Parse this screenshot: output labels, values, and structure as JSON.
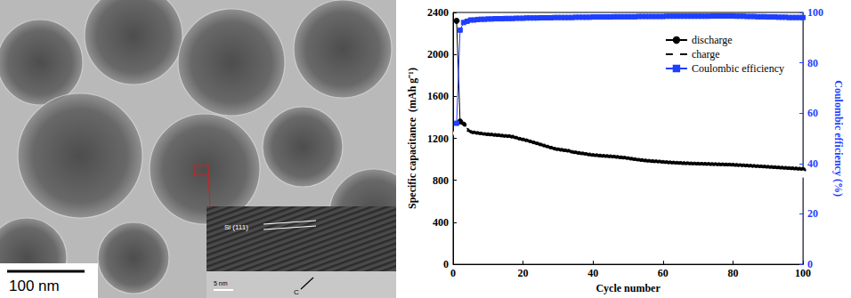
{
  "micrograph": {
    "scale_bar": "100 nm",
    "inset": {
      "lattice_label": "Si (111)",
      "scale_bar": "5 nm",
      "label": "C"
    }
  },
  "chart_data": {
    "type": "line",
    "x_label": "Cycle number",
    "y_label": "Specific capacitance  (mAh g⁻¹)",
    "y2_label": "Coulombic efficiency (%)",
    "xlim": [
      0,
      100
    ],
    "xticks": [
      0,
      20,
      40,
      60,
      80,
      100
    ],
    "ylim": [
      0,
      2400
    ],
    "yticks": [
      0,
      400,
      800,
      1200,
      1600,
      2000,
      2400
    ],
    "y2lim": [
      0,
      100
    ],
    "y2ticks": [
      0,
      20,
      40,
      60,
      80,
      100
    ],
    "grid": false,
    "legend": "upper right",
    "x": [
      1,
      2,
      3,
      4,
      5,
      6,
      7,
      8,
      9,
      10,
      11,
      12,
      13,
      14,
      15,
      16,
      17,
      18,
      19,
      20,
      21,
      22,
      23,
      24,
      25,
      26,
      27,
      28,
      29,
      30,
      31,
      32,
      33,
      34,
      35,
      36,
      37,
      38,
      39,
      40,
      41,
      42,
      43,
      44,
      45,
      46,
      47,
      48,
      49,
      50,
      51,
      52,
      53,
      54,
      55,
      56,
      57,
      58,
      59,
      60,
      61,
      62,
      63,
      64,
      65,
      66,
      67,
      68,
      69,
      70,
      71,
      72,
      73,
      74,
      75,
      76,
      77,
      78,
      79,
      80,
      81,
      82,
      83,
      84,
      85,
      86,
      87,
      88,
      89,
      90,
      91,
      92,
      93,
      94,
      95,
      96,
      97,
      98,
      99,
      100
    ],
    "series": [
      {
        "name": "discharge",
        "color": "#000000",
        "marker": "circle",
        "values": [
          2320,
          1360,
          1330,
          1270,
          1250,
          1245,
          1240,
          1235,
          1230,
          1228,
          1225,
          1222,
          1220,
          1215,
          1212,
          1210,
          1205,
          1195,
          1185,
          1178,
          1170,
          1160,
          1150,
          1140,
          1130,
          1120,
          1110,
          1100,
          1090,
          1085,
          1080,
          1075,
          1070,
          1060,
          1055,
          1050,
          1045,
          1040,
          1035,
          1030,
          1028,
          1025,
          1022,
          1020,
          1018,
          1015,
          1012,
          1008,
          1005,
          1000,
          995,
          990,
          985,
          982,
          978,
          975,
          972,
          970,
          968,
          965,
          962,
          960,
          958,
          956,
          955,
          953,
          952,
          950,
          949,
          948,
          947,
          946,
          945,
          944,
          943,
          942,
          941,
          940,
          939,
          938,
          936,
          934,
          932,
          930,
          928,
          926,
          924,
          922,
          920,
          918,
          916,
          914,
          912,
          910,
          908,
          906,
          904,
          902,
          900,
          898
        ]
      },
      {
        "name": "charge",
        "color": "#000000",
        "marker": "open_circle",
        "values": [
          1250,
          1300,
          1280,
          1230,
          1212,
          1208,
          1203,
          1198,
          1193,
          1190,
          1187,
          1184,
          1182,
          1177,
          1174,
          1172,
          1167,
          1157,
          1147,
          1140,
          1132,
          1122,
          1112,
          1102,
          1092,
          1082,
          1072,
          1062,
          1052,
          1047,
          1042,
          1037,
          1032,
          1022,
          1017,
          1012,
          1007,
          1002,
          997,
          992,
          990,
          987,
          984,
          982,
          980,
          977,
          974,
          970,
          967,
          962,
          957,
          952,
          947,
          944,
          940,
          937,
          934,
          932,
          930,
          927,
          924,
          922,
          920,
          918,
          917,
          915,
          914,
          912,
          911,
          910,
          909,
          908,
          907,
          906,
          905,
          904,
          903,
          902,
          901,
          900,
          898,
          896,
          894,
          892,
          890,
          888,
          886,
          884,
          882,
          880,
          878,
          876,
          874,
          872,
          870,
          868,
          866,
          864,
          862,
          860
        ]
      },
      {
        "name": "Coulombic efficiency",
        "color": "#1f3fff",
        "marker": "square",
        "axis": "y2",
        "values": [
          56,
          93,
          96,
          96.5,
          97,
          97,
          97.2,
          97.3,
          97.3,
          97.4,
          97.4,
          97.5,
          97.5,
          97.5,
          97.6,
          97.6,
          97.6,
          97.7,
          97.7,
          97.7,
          97.8,
          97.8,
          97.8,
          97.8,
          97.9,
          97.9,
          97.9,
          97.9,
          98,
          98,
          98,
          98,
          98,
          98,
          98.1,
          98.1,
          98.1,
          98.1,
          98.1,
          98.2,
          98.2,
          98.2,
          98.2,
          98.2,
          98.2,
          98.3,
          98.3,
          98.3,
          98.3,
          98.3,
          98.3,
          98.3,
          98.4,
          98.4,
          98.4,
          98.4,
          98.4,
          98.4,
          98.4,
          98.4,
          98.5,
          98.5,
          98.5,
          98.5,
          98.5,
          98.5,
          98.5,
          98.5,
          98.5,
          98.5,
          98.5,
          98.5,
          98.5,
          98.6,
          98.6,
          98.6,
          98.6,
          98.6,
          98.6,
          98.6,
          98.5,
          98.5,
          98.5,
          98.4,
          98.4,
          98.4,
          98.3,
          98.3,
          98.3,
          98.2,
          98.2,
          98.2,
          98.1,
          98.1,
          98.1,
          98,
          98,
          98,
          98,
          98
        ]
      }
    ]
  }
}
